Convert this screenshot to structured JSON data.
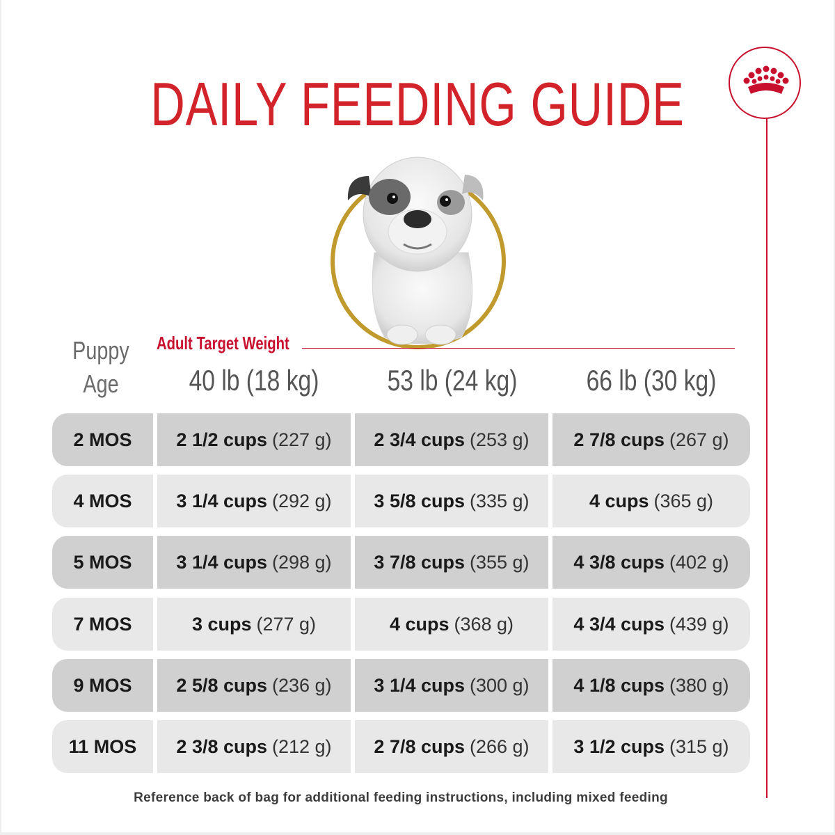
{
  "title": "DAILY FEEDING GUIDE",
  "brand": {
    "logo": "crown-icon",
    "color": "#c8102e"
  },
  "image": {
    "subject": "puppy-photo",
    "ring_color": "#c19a2e"
  },
  "table": {
    "age_header_line1": "Puppy",
    "age_header_line2": "Age",
    "group_header": "Adult Target Weight",
    "weights": [
      "40 lb (18 kg)",
      "53 lb (24 kg)",
      "66 lb (30 kg)"
    ],
    "rows": [
      {
        "age": "2 MOS",
        "cells": [
          {
            "cups": "2 1/2 cups",
            "grams": "(227 g)"
          },
          {
            "cups": "2 3/4 cups",
            "grams": "(253 g)"
          },
          {
            "cups": "2 7/8 cups",
            "grams": "(267 g)"
          }
        ]
      },
      {
        "age": "4 MOS",
        "cells": [
          {
            "cups": "3 1/4 cups",
            "grams": "(292 g)"
          },
          {
            "cups": "3 5/8 cups",
            "grams": "(335 g)"
          },
          {
            "cups": "4 cups",
            "grams": "(365 g)"
          }
        ]
      },
      {
        "age": "5 MOS",
        "cells": [
          {
            "cups": "3 1/4 cups",
            "grams": "(298 g)"
          },
          {
            "cups": "3 7/8 cups",
            "grams": "(355 g)"
          },
          {
            "cups": "4 3/8 cups",
            "grams": "(402 g)"
          }
        ]
      },
      {
        "age": "7 MOS",
        "cells": [
          {
            "cups": "3 cups",
            "grams": "(277 g)"
          },
          {
            "cups": "4 cups",
            "grams": "(368 g)"
          },
          {
            "cups": "4 3/4 cups",
            "grams": "(439 g)"
          }
        ]
      },
      {
        "age": "9 MOS",
        "cells": [
          {
            "cups": "2 5/8 cups",
            "grams": "(236 g)"
          },
          {
            "cups": "3 1/4 cups",
            "grams": "(300 g)"
          },
          {
            "cups": "4 1/8 cups",
            "grams": "(380 g)"
          }
        ]
      },
      {
        "age": "11 MOS",
        "cells": [
          {
            "cups": "2 3/8 cups",
            "grams": "(212 g)"
          },
          {
            "cups": "2 7/8 cups",
            "grams": "(266 g)"
          },
          {
            "cups": "3 1/2 cups",
            "grams": "(315 g)"
          }
        ]
      }
    ]
  },
  "footer": "Reference back of bag for additional feeding instructions, including mixed feeding"
}
